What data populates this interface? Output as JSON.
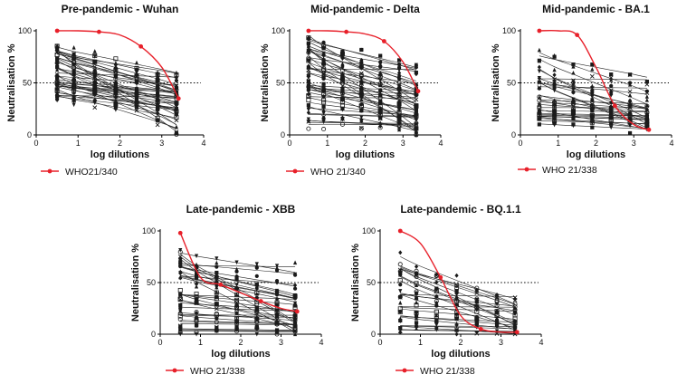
{
  "chart_data": [
    {
      "type": "scatter",
      "title": "Pre-pandemic - Wuhan",
      "xlabel": "log dilutions",
      "ylabel": "Neutralisation %",
      "xlim": [
        0,
        4
      ],
      "ylim": [
        0,
        100
      ],
      "xticks": [
        0,
        1,
        2,
        3,
        4
      ],
      "yticks": [
        0,
        50,
        100
      ],
      "reference_line": 50,
      "legend": "WHO21/340",
      "reference": {
        "name": "WHO21/340",
        "x": [
          0.5,
          1.0,
          1.5,
          2.0,
          2.5,
          3.0,
          3.4
        ],
        "y": [
          100,
          100,
          99,
          96,
          85,
          65,
          35
        ]
      },
      "samples": {
        "count": 40,
        "x": [
          0.5,
          0.9,
          1.4,
          1.9,
          2.4,
          2.9,
          3.35
        ],
        "y_range_start": [
          37,
          85
        ],
        "y_range_end": [
          2,
          60
        ]
      }
    },
    {
      "type": "scatter",
      "title": "Mid-pandemic - Delta",
      "xlabel": "log dilutions",
      "ylabel": "Neutralisation %",
      "xlim": [
        0,
        4
      ],
      "ylim": [
        0,
        100
      ],
      "xticks": [
        0,
        1,
        2,
        3,
        4
      ],
      "yticks": [
        0,
        50,
        100
      ],
      "reference_line": 50,
      "legend": "WHO 21/340",
      "reference": {
        "name": "WHO 21/340",
        "x": [
          0.5,
          1.0,
          1.5,
          2.0,
          2.5,
          3.0,
          3.4
        ],
        "y": [
          100,
          100,
          99,
          97,
          90,
          70,
          42
        ]
      },
      "samples": {
        "count": 42,
        "x": [
          0.5,
          0.9,
          1.4,
          1.9,
          2.4,
          2.9,
          3.35
        ],
        "y_range_start": [
          10,
          97
        ],
        "y_range_end": [
          2,
          65
        ]
      }
    },
    {
      "type": "scatter",
      "title": "Mid-pandemic - BA.1",
      "xlabel": "log dilutions",
      "ylabel": "Neutralisation %",
      "xlim": [
        0,
        4
      ],
      "ylim": [
        0,
        100
      ],
      "xticks": [
        0,
        1,
        2,
        3,
        4
      ],
      "yticks": [
        0,
        50,
        100
      ],
      "reference_line": 50,
      "legend": "WHO 21/338",
      "reference": {
        "name": "WHO 21/338",
        "x": [
          0.5,
          1.0,
          1.5,
          2.0,
          2.5,
          3.0,
          3.4
        ],
        "y": [
          100,
          100,
          96,
          65,
          28,
          10,
          5
        ]
      },
      "samples": {
        "count": 30,
        "x": [
          0.5,
          0.9,
          1.4,
          1.9,
          2.4,
          2.9,
          3.35
        ],
        "y_range_start": [
          10,
          82
        ],
        "y_range_end": [
          5,
          60
        ]
      }
    },
    {
      "type": "scatter",
      "title": "Late-pandemic - XBB",
      "xlabel": "log dilutions",
      "ylabel": "Neutralisation %",
      "xlim": [
        0,
        4
      ],
      "ylim": [
        0,
        100
      ],
      "xticks": [
        0,
        1,
        2,
        3,
        4
      ],
      "yticks": [
        0,
        50,
        100
      ],
      "reference_line": 50,
      "legend": "WHO 21/338",
      "reference": {
        "name": "WHO 21/338",
        "x": [
          0.5,
          1.0,
          1.5,
          2.0,
          2.5,
          3.0,
          3.4
        ],
        "y": [
          98,
          55,
          48,
          40,
          32,
          25,
          22
        ]
      },
      "samples": {
        "count": 34,
        "x": [
          0.5,
          0.9,
          1.4,
          1.9,
          2.4,
          2.9,
          3.35
        ],
        "y_range_start": [
          2,
          82
        ],
        "y_range_end": [
          2,
          66
        ]
      }
    },
    {
      "type": "scatter",
      "title": "Late-pandemic - BQ.1.1",
      "xlabel": "log dilutions",
      "ylabel": "Neutralisation %",
      "xlim": [
        0,
        4
      ],
      "ylim": [
        0,
        100
      ],
      "xticks": [
        0,
        1,
        2,
        3,
        4
      ],
      "yticks": [
        0,
        50,
        100
      ],
      "reference_line": 50,
      "legend": "WHO 21/338",
      "reference": {
        "name": "WHO 21/338",
        "x": [
          0.5,
          1.0,
          1.5,
          2.0,
          2.5,
          3.0,
          3.4
        ],
        "y": [
          100,
          88,
          55,
          18,
          5,
          2,
          2
        ]
      },
      "samples": {
        "count": 24,
        "x": [
          0.5,
          0.9,
          1.4,
          1.9,
          2.4,
          2.9,
          3.35
        ],
        "y_range_start": [
          2,
          78
        ],
        "y_range_end": [
          0,
          42
        ]
      }
    }
  ],
  "colors": {
    "reference": "#e8202a",
    "sample": "#1a1a1a",
    "axis": "#000000"
  }
}
